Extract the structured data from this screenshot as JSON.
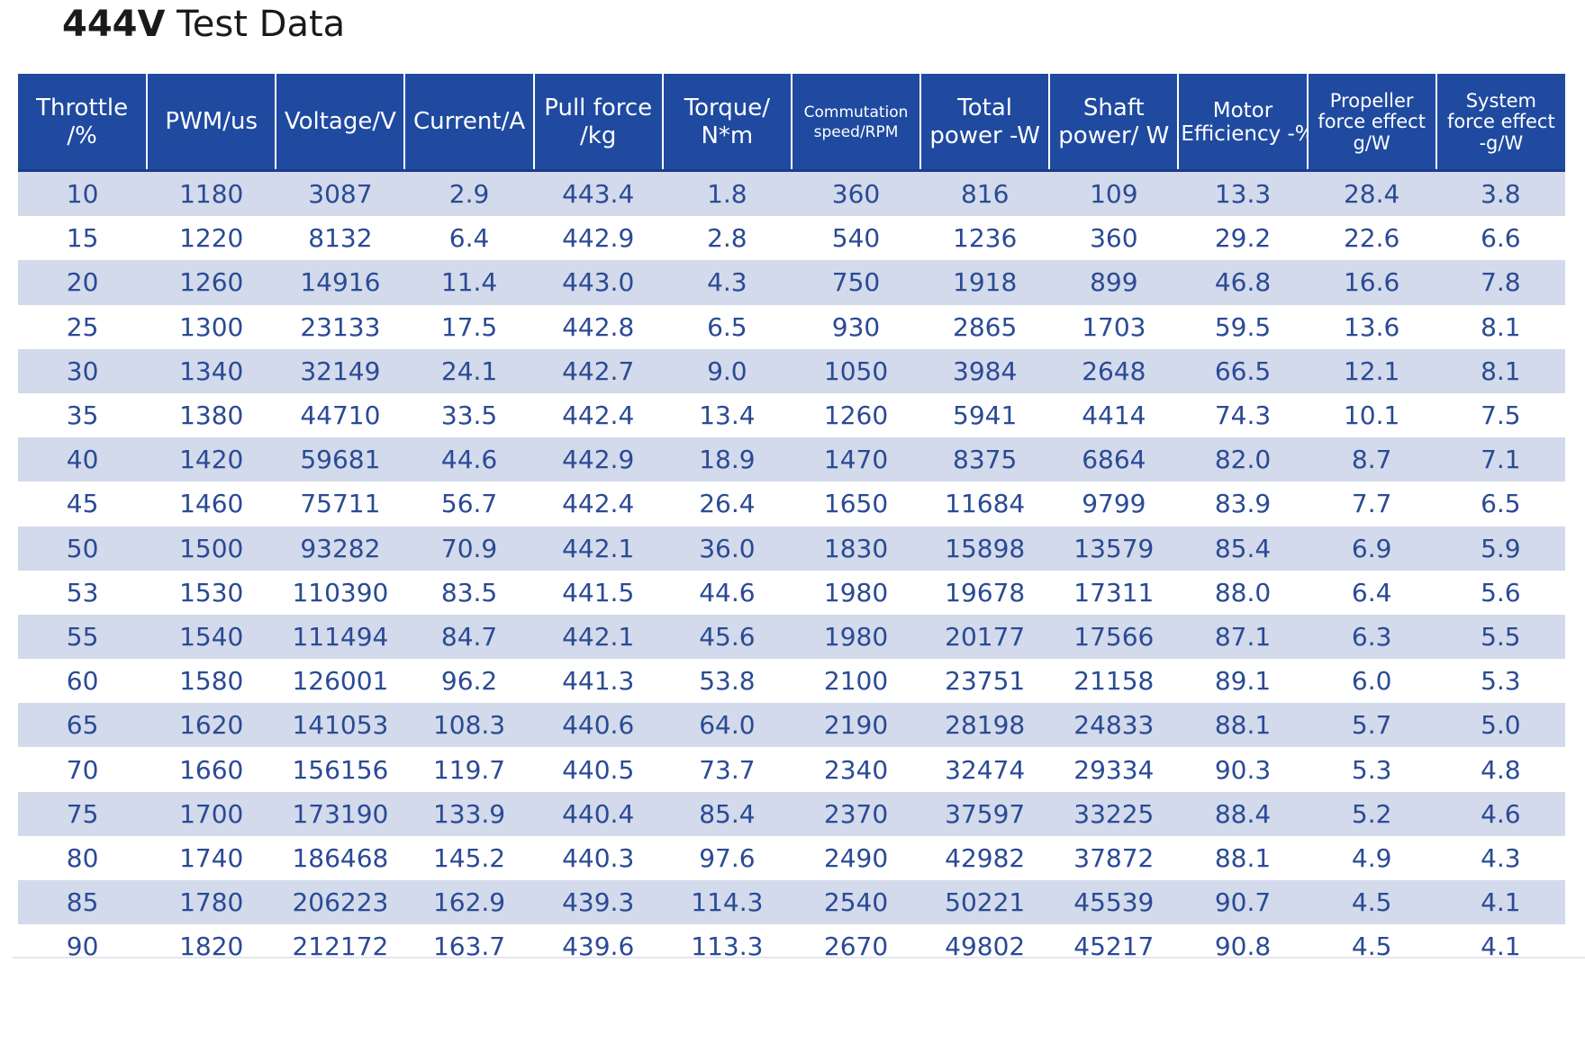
{
  "title": {
    "bold": "444V",
    "rest": " Test Data"
  },
  "colors": {
    "header_bg": "#1f4aa0",
    "header_text": "#ffffff",
    "row_shade": "#d2daeb",
    "cell_text": "#2a4a95"
  },
  "table": {
    "headers": [
      [
        "Throttle",
        "/%"
      ],
      [
        "PWM/us"
      ],
      [
        "Voltage/V"
      ],
      [
        "Current/A"
      ],
      [
        "Pull force",
        "/kg"
      ],
      [
        "Torque/",
        "N*m"
      ],
      [
        "Commutation",
        "speed/RPM"
      ],
      [
        "Total",
        "power -W"
      ],
      [
        "Shaft",
        "power/ W"
      ],
      [
        "Motor",
        "Efficiency -%"
      ],
      [
        "Propeller",
        "force effect",
        "g/W"
      ],
      [
        "System",
        "force effect",
        "-g/W"
      ]
    ],
    "rows": [
      [
        "10",
        "1180",
        "3087",
        "2.9",
        "443.4",
        "1.8",
        "360",
        "816",
        "109",
        "13.3",
        "28.4",
        "3.8"
      ],
      [
        "15",
        "1220",
        "8132",
        "6.4",
        "442.9",
        "2.8",
        "540",
        "1236",
        "360",
        "29.2",
        "22.6",
        "6.6"
      ],
      [
        "20",
        "1260",
        "14916",
        "11.4",
        "443.0",
        "4.3",
        "750",
        "1918",
        "899",
        "46.8",
        "16.6",
        "7.8"
      ],
      [
        "25",
        "1300",
        "23133",
        "17.5",
        "442.8",
        "6.5",
        "930",
        "2865",
        "1703",
        "59.5",
        "13.6",
        "8.1"
      ],
      [
        "30",
        "1340",
        "32149",
        "24.1",
        "442.7",
        "9.0",
        "1050",
        "3984",
        "2648",
        "66.5",
        "12.1",
        "8.1"
      ],
      [
        "35",
        "1380",
        "44710",
        "33.5",
        "442.4",
        "13.4",
        "1260",
        "5941",
        "4414",
        "74.3",
        "10.1",
        "7.5"
      ],
      [
        "40",
        "1420",
        "59681",
        "44.6",
        "442.9",
        "18.9",
        "1470",
        "8375",
        "6864",
        "82.0",
        "8.7",
        "7.1"
      ],
      [
        "45",
        "1460",
        "75711",
        "56.7",
        "442.4",
        "26.4",
        "1650",
        "11684",
        "9799",
        "83.9",
        "7.7",
        "6.5"
      ],
      [
        "50",
        "1500",
        "93282",
        "70.9",
        "442.1",
        "36.0",
        "1830",
        "15898",
        "13579",
        "85.4",
        "6.9",
        "5.9"
      ],
      [
        "53",
        "1530",
        "110390",
        "83.5",
        "441.5",
        "44.6",
        "1980",
        "19678",
        "17311",
        "88.0",
        "6.4",
        "5.6"
      ],
      [
        "55",
        "1540",
        "111494",
        "84.7",
        "442.1",
        "45.6",
        "1980",
        "20177",
        "17566",
        "87.1",
        "6.3",
        "5.5"
      ],
      [
        "60",
        "1580",
        "126001",
        "96.2",
        "441.3",
        "53.8",
        "2100",
        "23751",
        "21158",
        "89.1",
        "6.0",
        "5.3"
      ],
      [
        "65",
        "1620",
        "141053",
        "108.3",
        "440.6",
        "64.0",
        "2190",
        "28198",
        "24833",
        "88.1",
        "5.7",
        "5.0"
      ],
      [
        "70",
        "1660",
        "156156",
        "119.7",
        "440.5",
        "73.7",
        "2340",
        "32474",
        "29334",
        "90.3",
        "5.3",
        "4.8"
      ],
      [
        "75",
        "1700",
        "173190",
        "133.9",
        "440.4",
        "85.4",
        "2370",
        "37597",
        "33225",
        "88.4",
        "5.2",
        "4.6"
      ],
      [
        "80",
        "1740",
        "186468",
        "145.2",
        "440.3",
        "97.6",
        "2490",
        "42982",
        "37872",
        "88.1",
        "4.9",
        "4.3"
      ],
      [
        "85",
        "1780",
        "206223",
        "162.9",
        "439.3",
        "114.3",
        "2540",
        "50221",
        "45539",
        "90.7",
        "4.5",
        "4.1"
      ],
      [
        "90",
        "1820",
        "212172",
        "163.7",
        "439.6",
        "113.3",
        "2670",
        "49802",
        "45217",
        "90.8",
        "4.5",
        "4.1"
      ]
    ]
  }
}
